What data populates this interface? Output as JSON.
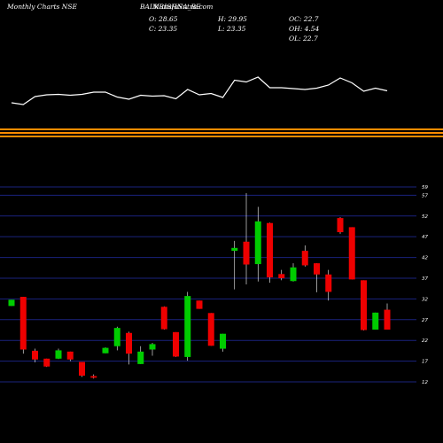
{
  "header": {
    "left": "Monthly Charts NSE",
    "symbol": "BALKRISHNA_BE",
    "watermark": "MunafaSutra.com",
    "open": "O: 28.65",
    "high": "H: 29.95",
    "close": "C: 23.35",
    "low": "L: 23.35",
    "oc": "OC: 22.7",
    "oh": "OH: 4.54",
    "ol": "OL: 22.7"
  },
  "colors": {
    "background": "#000000",
    "up": "#00cc00",
    "down": "#ee0000",
    "grid": "#1a237e",
    "volume_line": "#ffffff",
    "separator": "#ff8c00"
  },
  "chart_data": {
    "type": "candlestick",
    "y_ticks": [
      12,
      17,
      22,
      27,
      32,
      37,
      42,
      47,
      52,
      57,
      59
    ],
    "ylim": [
      12,
      59
    ],
    "grid": true,
    "candles": [
      {
        "open": 30.3,
        "close": 31.8,
        "high": 31.8,
        "low": 30.3
      },
      {
        "open": 32.5,
        "close": 19.8,
        "high": 32.5,
        "low": 18.8
      },
      {
        "open": 19.5,
        "close": 17.4,
        "high": 20.0,
        "low": 16.7
      },
      {
        "open": 17.6,
        "close": 15.7,
        "high": 17.6,
        "low": 15.6
      },
      {
        "open": 17.6,
        "close": 19.6,
        "high": 20.0,
        "low": 17.5
      },
      {
        "open": 19.3,
        "close": 17.4,
        "high": 19.3,
        "low": 17.0
      },
      {
        "open": 16.8,
        "close": 13.5,
        "high": 16.8,
        "low": 13.2
      },
      {
        "open": 13.4,
        "close": 13.0,
        "high": 13.8,
        "low": 12.8
      },
      {
        "open": 18.9,
        "close": 20.2,
        "high": 20.3,
        "low": 18.9
      },
      {
        "open": 20.6,
        "close": 25.0,
        "high": 25.3,
        "low": 19.6
      },
      {
        "open": 23.8,
        "close": 18.8,
        "high": 24.1,
        "low": 16.2
      },
      {
        "open": 16.3,
        "close": 19.3,
        "high": 20.6,
        "low": 16.3
      },
      {
        "open": 19.8,
        "close": 21.1,
        "high": 21.4,
        "low": 18.3
      },
      {
        "open": 30.1,
        "close": 24.7,
        "high": 30.2,
        "low": 24.6
      },
      {
        "open": 24.0,
        "close": 18.1,
        "high": 24.0,
        "low": 18.0
      },
      {
        "open": 18.0,
        "close": 32.7,
        "high": 33.7,
        "low": 17.1
      },
      {
        "open": 31.6,
        "close": 29.6,
        "high": 31.6,
        "low": 29.6
      },
      {
        "open": 28.6,
        "close": 20.7,
        "high": 28.6,
        "low": 20.7
      },
      {
        "open": 20.0,
        "close": 23.6,
        "high": 23.6,
        "low": 19.3
      },
      {
        "open": 43.6,
        "close": 44.3,
        "high": 46.0,
        "low": 34.3
      },
      {
        "open": 45.8,
        "close": 40.3,
        "high": 57.5,
        "low": 35.5
      },
      {
        "open": 40.4,
        "close": 50.7,
        "high": 54.2,
        "low": 36.2
      },
      {
        "open": 50.3,
        "close": 37.2,
        "high": 50.4,
        "low": 35.9
      },
      {
        "open": 38.0,
        "close": 37.0,
        "high": 39.0,
        "low": 36.5
      },
      {
        "open": 36.3,
        "close": 39.6,
        "high": 40.6,
        "low": 36.2
      },
      {
        "open": 43.6,
        "close": 40.1,
        "high": 44.9,
        "low": 39.8
      },
      {
        "open": 40.6,
        "close": 37.9,
        "high": 40.6,
        "low": 33.6
      },
      {
        "open": 37.9,
        "close": 33.7,
        "high": 39.0,
        "low": 31.6
      },
      {
        "open": 51.5,
        "close": 48.1,
        "high": 51.7,
        "low": 47.7
      },
      {
        "open": 49.3,
        "close": 36.7,
        "high": 49.3,
        "low": 36.7
      },
      {
        "open": 36.5,
        "close": 24.5,
        "high": 36.5,
        "low": 24.4
      },
      {
        "open": 24.6,
        "close": 28.7,
        "high": 28.7,
        "low": 24.6
      },
      {
        "open": 29.4,
        "close": 24.6,
        "high": 30.9,
        "low": 24.6
      }
    ],
    "volume": [
      38,
      34,
      52,
      56,
      57,
      55,
      57,
      62,
      62,
      51,
      46,
      55,
      53,
      54,
      47,
      68,
      56,
      59,
      50,
      89,
      85,
      96,
      72,
      72,
      70,
      68,
      71,
      78,
      94,
      83,
      64,
      71,
      65
    ]
  }
}
